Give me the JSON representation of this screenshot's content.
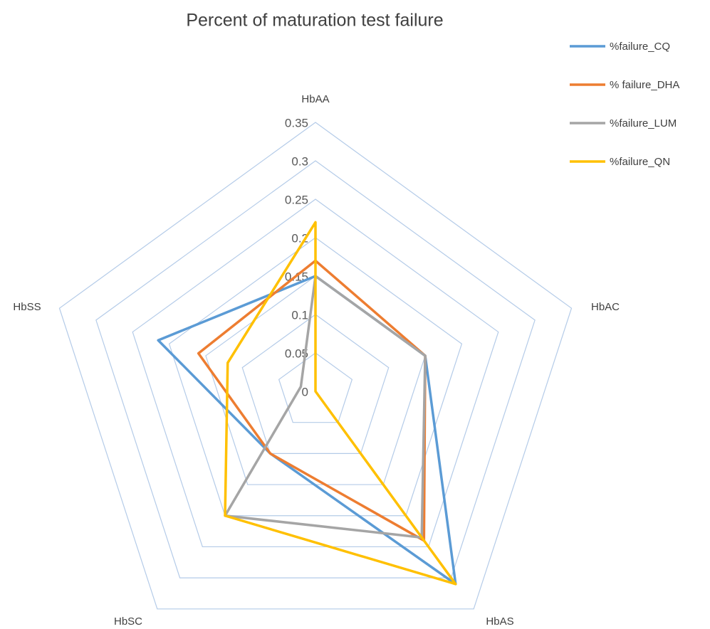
{
  "chart_data": {
    "type": "radar",
    "title": "Percent of maturation test failure",
    "categories": [
      "HbAA",
      "HbAC",
      "HbAS",
      "HbSC",
      "HbSS"
    ],
    "series": [
      {
        "name": "%failure_CQ",
        "color": "#5b9bd5",
        "values": [
          0.15,
          0.15,
          0.31,
          0.1,
          0.215
        ]
      },
      {
        "name": "% failure_DHA",
        "color": "#ed7d31",
        "values": [
          0.17,
          0.15,
          0.24,
          0.1,
          0.16
        ]
      },
      {
        "name": "%failure_LUM",
        "color": "#a5a5a5",
        "values": [
          0.15,
          0.15,
          0.235,
          0.2,
          0.02
        ]
      },
      {
        "name": "%failure_QN",
        "color": "#ffc000",
        "values": [
          0.22,
          0,
          0.31,
          0.2,
          0.12
        ]
      }
    ],
    "ylim": [
      0,
      0.35
    ],
    "yticks": [
      0,
      0.05,
      0.1,
      0.15,
      0.2,
      0.25,
      0.3,
      0.35
    ],
    "grid": true,
    "legend": "right"
  }
}
